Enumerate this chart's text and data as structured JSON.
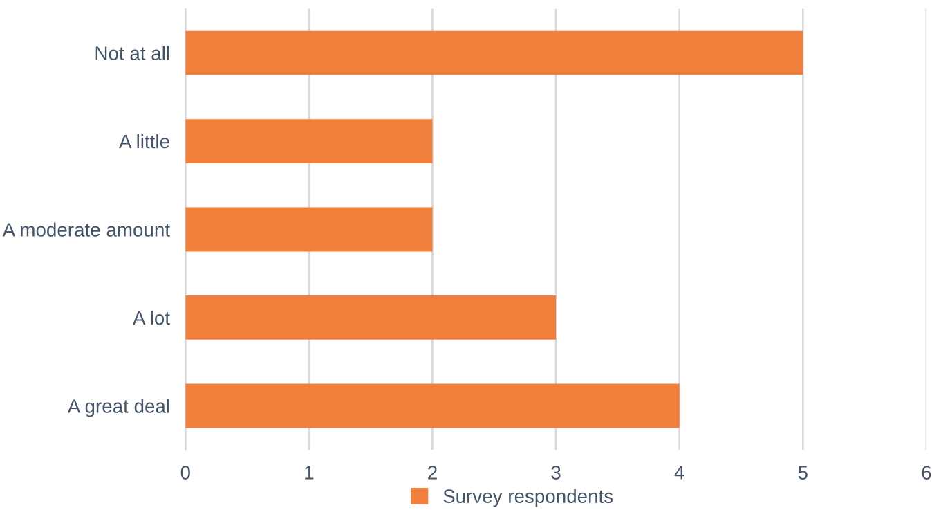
{
  "chart_data": {
    "type": "bar",
    "orientation": "horizontal",
    "categories": [
      "Not at all",
      "A little",
      "A moderate amount",
      "A lot",
      "A great deal"
    ],
    "series": [
      {
        "name": "Survey respondents",
        "color": "#f07f3c",
        "values": [
          5,
          2,
          2,
          3,
          4
        ]
      }
    ],
    "xlim": [
      0,
      6
    ],
    "xticks": [
      0,
      1,
      2,
      3,
      4,
      5,
      6
    ],
    "grid": "x",
    "legend": "bottom"
  }
}
